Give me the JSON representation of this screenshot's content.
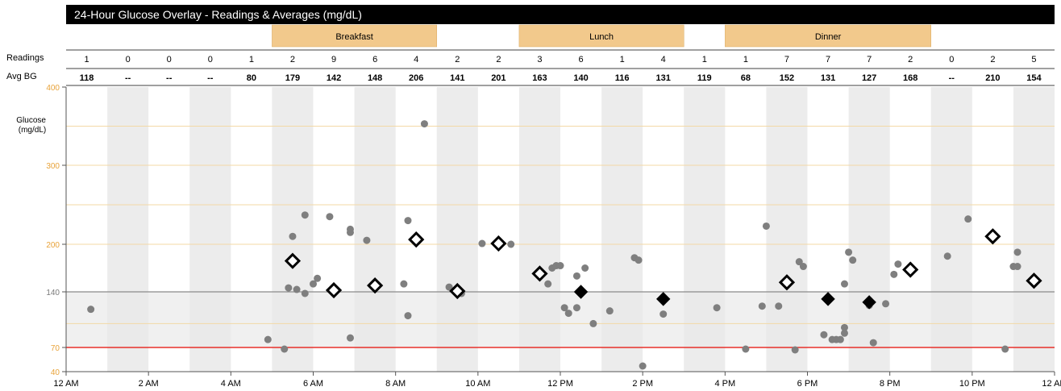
{
  "chart_data": {
    "type": "scatter",
    "title": "24-Hour Glucose Overlay - Readings & Averages (mg/dL)",
    "ylabel": "Glucose\n(mg/dL)",
    "row_labels": {
      "readings": "Readings",
      "avg": "Avg BG"
    },
    "meal_bands": [
      {
        "label": "Breakfast",
        "start_hour": 5,
        "end_hour": 9
      },
      {
        "label": "Lunch",
        "start_hour": 11,
        "end_hour": 15
      },
      {
        "label": "Dinner",
        "start_hour": 16,
        "end_hour": 21
      }
    ],
    "hour_counts": [
      "1",
      "0",
      "0",
      "0",
      "1",
      "2",
      "9",
      "6",
      "4",
      "2",
      "2",
      "3",
      "6",
      "1",
      "4",
      "1",
      "1",
      "7",
      "7",
      "7",
      "2",
      "0",
      "2",
      "5"
    ],
    "hour_avgs": [
      "118",
      "--",
      "--",
      "--",
      "80",
      "179",
      "142",
      "148",
      "206",
      "141",
      "201",
      "163",
      "140",
      "116",
      "131",
      "119",
      "68",
      "152",
      "131",
      "127",
      "168",
      "--",
      "210",
      "154"
    ],
    "xlim": [
      0,
      24
    ],
    "ylim": [
      40,
      400
    ],
    "x_ticks": [
      {
        "hour": 0,
        "label": "12 AM"
      },
      {
        "hour": 2,
        "label": "2 AM"
      },
      {
        "hour": 4,
        "label": "4 AM"
      },
      {
        "hour": 6,
        "label": "6 AM"
      },
      {
        "hour": 8,
        "label": "8 AM"
      },
      {
        "hour": 10,
        "label": "10 AM"
      },
      {
        "hour": 12,
        "label": "12 PM"
      },
      {
        "hour": 14,
        "label": "2 PM"
      },
      {
        "hour": 16,
        "label": "4 PM"
      },
      {
        "hour": 18,
        "label": "6 PM"
      },
      {
        "hour": 20,
        "label": "8 PM"
      },
      {
        "hour": 22,
        "label": "10 PM"
      },
      {
        "hour": 24,
        "label": "12 AM"
      }
    ],
    "y_ticks": [
      {
        "value": 40,
        "label": "40",
        "color": "#e8a33a"
      },
      {
        "value": 70,
        "label": "70",
        "color": "#e8a33a"
      },
      {
        "value": 140,
        "label": "140",
        "color": "#7a7a7a"
      },
      {
        "value": 200,
        "label": "200",
        "color": "#e8a33a"
      },
      {
        "value": 300,
        "label": "300",
        "color": "#e8a33a"
      },
      {
        "value": 400,
        "label": "400",
        "color": "#e8a33a"
      }
    ],
    "target_range": [
      70,
      140
    ],
    "low_line": 70,
    "high_line": 140,
    "reference_lines": [
      100,
      200,
      250,
      300,
      350
    ],
    "colors": {
      "title_bg": "#000000",
      "title_text": "#ffffff",
      "band": "#f2c98c",
      "stripe": "#ececec",
      "target_band": "#e9e9e9",
      "low_line": "#e8302a",
      "high_line": "#8a8a8a",
      "ref_line": "#f3d9a6",
      "dot": "#7f7f7f",
      "avg_marker": "#000000"
    },
    "points": [
      [
        0.6,
        118
      ],
      [
        4.9,
        80
      ],
      [
        5.3,
        68
      ],
      [
        5.4,
        145
      ],
      [
        5.5,
        210
      ],
      [
        5.6,
        143
      ],
      [
        5.8,
        138
      ],
      [
        5.8,
        237
      ],
      [
        6.0,
        150
      ],
      [
        6.1,
        157
      ],
      [
        6.4,
        235
      ],
      [
        6.9,
        82
      ],
      [
        6.9,
        219
      ],
      [
        6.9,
        215
      ],
      [
        7.3,
        205
      ],
      [
        8.2,
        150
      ],
      [
        8.3,
        230
      ],
      [
        8.3,
        110
      ],
      [
        8.7,
        353
      ],
      [
        9.3,
        146
      ],
      [
        9.6,
        138
      ],
      [
        10.1,
        201
      ],
      [
        10.8,
        200
      ],
      [
        11.7,
        150
      ],
      [
        11.8,
        170
      ],
      [
        11.9,
        173
      ],
      [
        12.0,
        173
      ],
      [
        12.1,
        120
      ],
      [
        12.2,
        113
      ],
      [
        12.4,
        160
      ],
      [
        12.4,
        120
      ],
      [
        12.6,
        170
      ],
      [
        12.8,
        100
      ],
      [
        13.2,
        116
      ],
      [
        13.8,
        183
      ],
      [
        13.9,
        180
      ],
      [
        14.0,
        47
      ],
      [
        14.5,
        112
      ],
      [
        15.8,
        120
      ],
      [
        16.5,
        68
      ],
      [
        16.9,
        122
      ],
      [
        17.0,
        223
      ],
      [
        17.3,
        122
      ],
      [
        17.7,
        67
      ],
      [
        17.8,
        178
      ],
      [
        17.9,
        172
      ],
      [
        18.4,
        86
      ],
      [
        18.6,
        80
      ],
      [
        18.7,
        80
      ],
      [
        18.8,
        80
      ],
      [
        18.9,
        88
      ],
      [
        18.9,
        95
      ],
      [
        18.9,
        150
      ],
      [
        19.0,
        190
      ],
      [
        19.1,
        180
      ],
      [
        19.5,
        123
      ],
      [
        19.6,
        76
      ],
      [
        19.9,
        125
      ],
      [
        20.1,
        162
      ],
      [
        20.2,
        175
      ],
      [
        21.4,
        185
      ],
      [
        21.9,
        232
      ],
      [
        22.8,
        68
      ],
      [
        23.0,
        172
      ],
      [
        23.1,
        172
      ],
      [
        23.1,
        190
      ]
    ],
    "averages": [
      {
        "hour": 5.5,
        "value": 179,
        "filled": false
      },
      {
        "hour": 6.5,
        "value": 142,
        "filled": false
      },
      {
        "hour": 7.5,
        "value": 148,
        "filled": false
      },
      {
        "hour": 8.5,
        "value": 206,
        "filled": false
      },
      {
        "hour": 9.5,
        "value": 141,
        "filled": false
      },
      {
        "hour": 10.5,
        "value": 201,
        "filled": false
      },
      {
        "hour": 11.5,
        "value": 163,
        "filled": false
      },
      {
        "hour": 12.5,
        "value": 140,
        "filled": true
      },
      {
        "hour": 14.5,
        "value": 131,
        "filled": true
      },
      {
        "hour": 17.5,
        "value": 152,
        "filled": false
      },
      {
        "hour": 18.5,
        "value": 131,
        "filled": true
      },
      {
        "hour": 19.5,
        "value": 127,
        "filled": true
      },
      {
        "hour": 20.5,
        "value": 168,
        "filled": false
      },
      {
        "hour": 22.5,
        "value": 210,
        "filled": false
      },
      {
        "hour": 23.5,
        "value": 154,
        "filled": false
      }
    ]
  }
}
